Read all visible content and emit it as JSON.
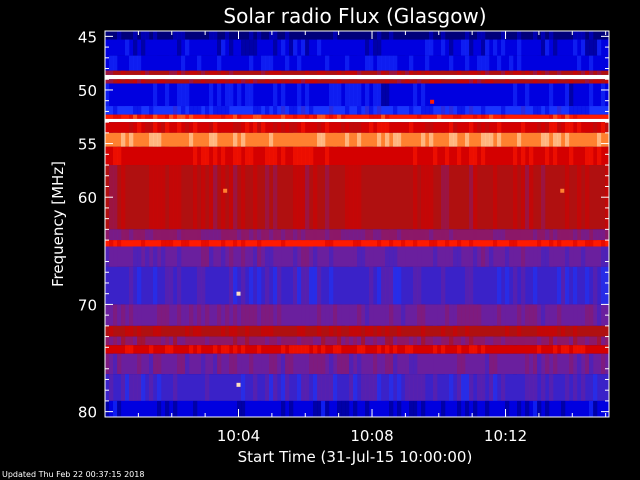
{
  "chart_data": {
    "type": "heatmap",
    "title": "Solar radio Flux (Glasgow)",
    "xlabel": "Start Time (31-Jul-15 10:00:00)",
    "ylabel": "Frequency [MHz]",
    "x_range_minutes": [
      0,
      15.1
    ],
    "x_ticks": [
      {
        "label": "10:04",
        "minute": 4
      },
      {
        "label": "10:08",
        "minute": 8
      },
      {
        "label": "10:12",
        "minute": 12
      }
    ],
    "ylim": [
      44.5,
      80.5
    ],
    "y_ticks": [
      {
        "label": "45",
        "value": 45
      },
      {
        "label": "50",
        "value": 50
      },
      {
        "label": "55",
        "value": 55
      },
      {
        "label": "60",
        "value": 60
      },
      {
        "label": "70",
        "value": 70
      },
      {
        "label": "80",
        "value": 80
      }
    ],
    "colormap": [
      "#00007a",
      "#0000e0",
      "#1a35ff",
      "#3a22c8",
      "#6a1f9e",
      "#8c1868",
      "#b01010",
      "#d40000",
      "#ff1a00",
      "#ff8030",
      "#ffe0c0",
      "#ffffff"
    ],
    "frequency_bands": [
      {
        "from": 44.5,
        "to": 45.3,
        "level": 0.05
      },
      {
        "from": 45.3,
        "to": 46.8,
        "level": 0.12
      },
      {
        "from": 46.8,
        "to": 48.2,
        "level": 0.16
      },
      {
        "from": 48.2,
        "to": 48.6,
        "level": 0.55
      },
      {
        "from": 48.6,
        "to": 49.0,
        "level": 1.0
      },
      {
        "from": 49.0,
        "to": 49.4,
        "level": 0.55
      },
      {
        "from": 49.4,
        "to": 51.5,
        "level": 0.15
      },
      {
        "from": 51.5,
        "to": 52.3,
        "level": 0.2
      },
      {
        "from": 52.3,
        "to": 52.7,
        "level": 0.7
      },
      {
        "from": 52.7,
        "to": 53.0,
        "level": 0.95
      },
      {
        "from": 53.0,
        "to": 54.0,
        "level": 0.62
      },
      {
        "from": 54.0,
        "to": 55.3,
        "level": 0.82
      },
      {
        "from": 55.3,
        "to": 57.0,
        "level": 0.66
      },
      {
        "from": 57.0,
        "to": 63.0,
        "level": 0.55
      },
      {
        "from": 63.0,
        "to": 64.0,
        "level": 0.42
      },
      {
        "from": 64.0,
        "to": 64.6,
        "level": 0.68
      },
      {
        "from": 64.6,
        "to": 66.5,
        "level": 0.36
      },
      {
        "from": 66.5,
        "to": 70.0,
        "level": 0.3
      },
      {
        "from": 70.0,
        "to": 72.0,
        "level": 0.4
      },
      {
        "from": 72.0,
        "to": 73.0,
        "level": 0.58
      },
      {
        "from": 73.0,
        "to": 73.8,
        "level": 0.44
      },
      {
        "from": 73.8,
        "to": 74.6,
        "level": 0.66
      },
      {
        "from": 74.6,
        "to": 76.5,
        "level": 0.38
      },
      {
        "from": 76.5,
        "to": 79.0,
        "level": 0.3
      },
      {
        "from": 79.0,
        "to": 80.5,
        "level": 0.1
      }
    ],
    "events": [
      {
        "minute": 9.8,
        "freq": 51.1,
        "level": 0.7
      },
      {
        "minute": 3.6,
        "freq": 59.4,
        "level": 0.78
      },
      {
        "minute": 13.7,
        "freq": 59.4,
        "level": 0.78
      },
      {
        "minute": 4.0,
        "freq": 69.0,
        "level": 0.9
      },
      {
        "minute": 4.0,
        "freq": 77.5,
        "level": 0.9
      }
    ]
  },
  "footer_text": "Updated Thu Feb 22 00:37:15 2018"
}
